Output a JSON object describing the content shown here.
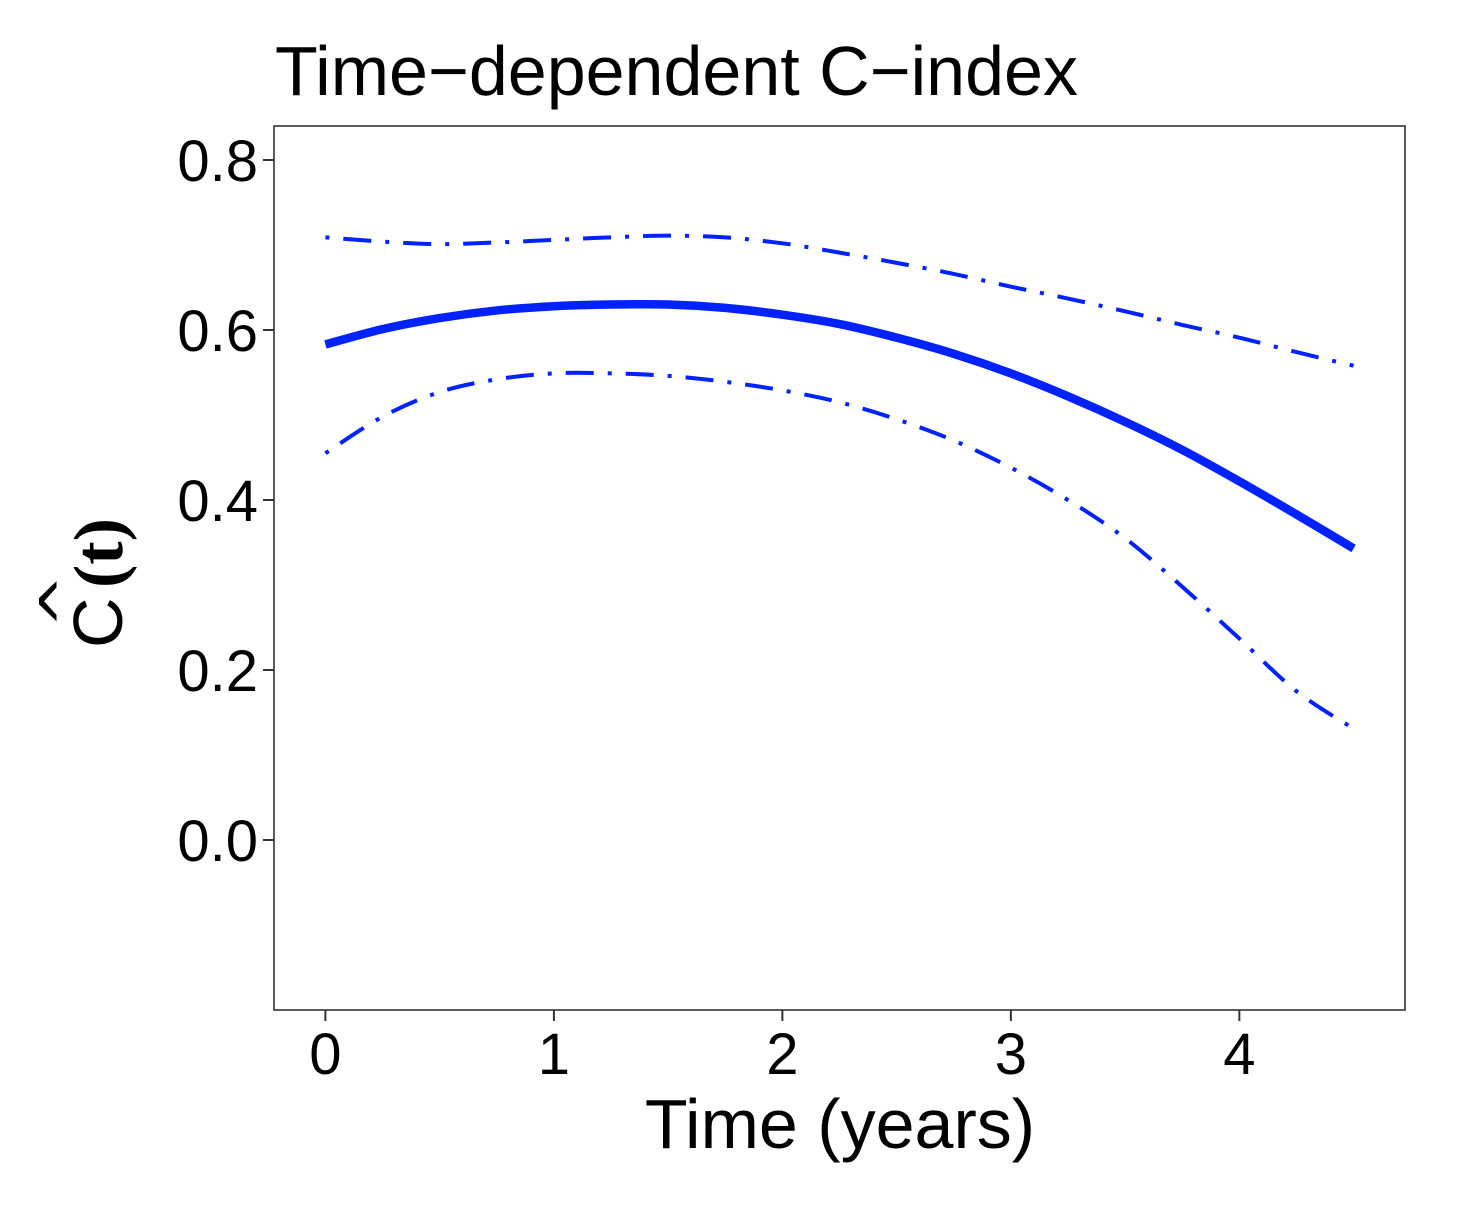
{
  "chart_data": {
    "type": "line",
    "title": "Time−dependent C−index",
    "xlabel": "Time (years)",
    "ylabel": {
      "hat": "^",
      "letter": "C",
      "argument": "(t)"
    },
    "xlim": [
      -0.225,
      4.725
    ],
    "ylim": [
      -0.2,
      0.84
    ],
    "x_ticks": [
      0,
      1,
      2,
      3,
      4
    ],
    "y_ticks": [
      0.0,
      0.2,
      0.4,
      0.6,
      0.8
    ],
    "x_tick_labels": [
      "0",
      "1",
      "2",
      "3",
      "4"
    ],
    "y_tick_labels": [
      "0.0",
      "0.2",
      "0.4",
      "0.6",
      "0.8"
    ],
    "grid": false,
    "line_color": "#0022ff",
    "series": [
      {
        "role": "estimate",
        "style": "solid",
        "x": [
          0,
          0.25,
          0.5,
          0.75,
          1.0,
          1.25,
          1.5,
          1.75,
          2.0,
          2.25,
          2.5,
          2.75,
          3.0,
          3.25,
          3.5,
          3.75,
          4.0,
          4.25,
          4.5
        ],
        "y": [
          0.583,
          0.601,
          0.614,
          0.623,
          0.628,
          0.63,
          0.63,
          0.626,
          0.618,
          0.607,
          0.591,
          0.572,
          0.549,
          0.522,
          0.492,
          0.459,
          0.422,
          0.383,
          0.343
        ]
      },
      {
        "role": "upper-bound",
        "style": "dashdot",
        "x": [
          0,
          0.25,
          0.5,
          0.75,
          1.0,
          1.25,
          1.5,
          1.75,
          2.0,
          2.25,
          2.5,
          2.75,
          3.0,
          3.25,
          3.5,
          3.75,
          4.0,
          4.25,
          4.5
        ],
        "y": [
          0.709,
          0.704,
          0.701,
          0.703,
          0.706,
          0.709,
          0.711,
          0.709,
          0.702,
          0.691,
          0.679,
          0.666,
          0.651,
          0.637,
          0.622,
          0.606,
          0.591,
          0.574,
          0.558
        ]
      },
      {
        "role": "lower-bound",
        "style": "dashdot",
        "x": [
          0,
          0.25,
          0.5,
          0.75,
          1.0,
          1.25,
          1.5,
          1.75,
          2.0,
          2.25,
          2.5,
          2.75,
          3.0,
          3.25,
          3.5,
          3.75,
          4.0,
          4.25,
          4.5
        ],
        "y": [
          0.455,
          0.498,
          0.527,
          0.542,
          0.549,
          0.549,
          0.546,
          0.539,
          0.529,
          0.515,
          0.495,
          0.47,
          0.438,
          0.4,
          0.355,
          0.298,
          0.237,
          0.175,
          0.131
        ]
      }
    ]
  }
}
